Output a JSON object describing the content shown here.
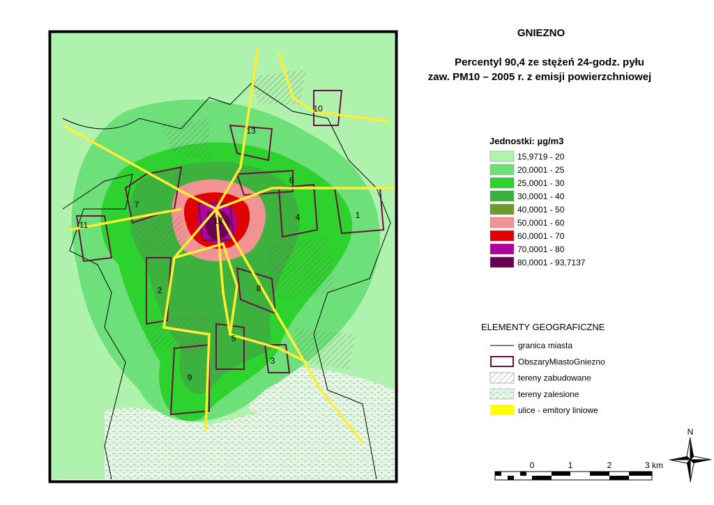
{
  "title": "GNIEZNO",
  "subtitle": [
    "Percentyl 90,4 ze stężeń 24-godz. pyłu",
    "zaw. PM10 – 2005 r. z emisji powierzchniowej"
  ],
  "legend": {
    "title": "Jednostki: µg/m3",
    "items": [
      {
        "label": "15,9719 - 20",
        "color": "#aef2ae"
      },
      {
        "label": "20,0001 - 25",
        "color": "#6ee07a"
      },
      {
        "label": "25,0001 - 30",
        "color": "#2ed22e"
      },
      {
        "label": "30,0001 - 40",
        "color": "#3db13d"
      },
      {
        "label": "40,0001 - 50",
        "color": "#6b9b2b"
      },
      {
        "label": "50,0001 - 60",
        "color": "#f29393"
      },
      {
        "label": "60,0001 - 70",
        "color": "#e00000"
      },
      {
        "label": "70,0001 - 80",
        "color": "#b0009e"
      },
      {
        "label": "80,0001 - 93,7137",
        "color": "#6a0050"
      }
    ]
  },
  "geo_legend": {
    "title": "ELEMENTY GEOGRAFICZNE",
    "items": [
      "granica miasta",
      "ObszaryMiastoGniezno",
      "tereny zabudowane",
      "tereny zalesione",
      "ulice - emitory liniowe"
    ]
  },
  "area_labels": [
    "10",
    "13",
    "6",
    "7",
    "11",
    "12",
    "4",
    "1",
    "2",
    "8",
    "5",
    "3",
    "9"
  ],
  "scale_bar": [
    "0",
    "1",
    "2",
    "3 km"
  ],
  "north": "N"
}
